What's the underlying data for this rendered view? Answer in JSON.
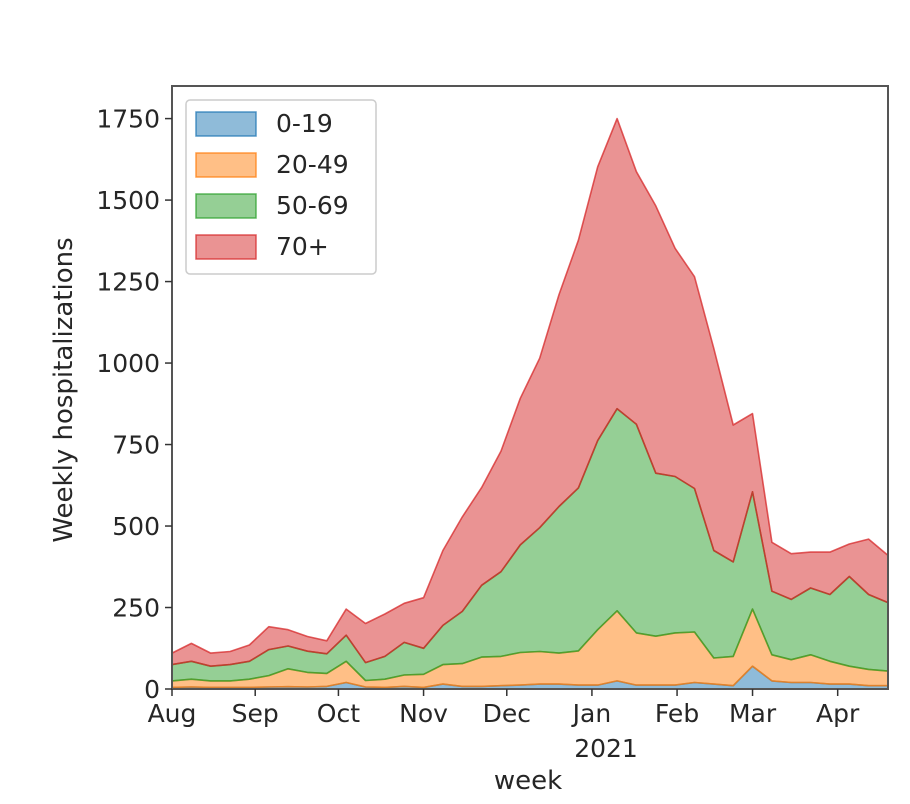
{
  "chart_data": {
    "type": "area",
    "stacked": true,
    "xlabel": "week",
    "ylabel": "Weekly hospitalizations",
    "year_label": "2021",
    "ylim": [
      0,
      1850
    ],
    "yticks": [
      0,
      250,
      500,
      750,
      1000,
      1250,
      1500,
      1750
    ],
    "x_start_week": 0,
    "x_end_week": 37,
    "month_ticks": [
      {
        "label": "Aug",
        "week": 0
      },
      {
        "label": "Sep",
        "week": 4.3
      },
      {
        "label": "Oct",
        "week": 8.6
      },
      {
        "label": "Nov",
        "week": 13
      },
      {
        "label": "Dec",
        "week": 17.3
      },
      {
        "label": "Jan",
        "week": 21.7
      },
      {
        "label": "Feb",
        "week": 26.1
      },
      {
        "label": "Mar",
        "week": 30
      },
      {
        "label": "Apr",
        "week": 34.4
      }
    ],
    "weeks": [
      0,
      1,
      2,
      3,
      4,
      5,
      6,
      7,
      8,
      9,
      10,
      11,
      12,
      13,
      14,
      15,
      16,
      17,
      18,
      19,
      20,
      21,
      22,
      23,
      24,
      25,
      26,
      27,
      28,
      29,
      30,
      31,
      32,
      33,
      34,
      35,
      36,
      37
    ],
    "series": [
      {
        "name": "0-19",
        "color": "#1f77b4",
        "values": [
          5,
          6,
          5,
          5,
          5,
          6,
          7,
          6,
          8,
          20,
          6,
          5,
          8,
          5,
          15,
          8,
          8,
          10,
          12,
          15,
          15,
          12,
          12,
          25,
          12,
          12,
          12,
          20,
          15,
          10,
          70,
          25,
          20,
          20,
          15,
          15,
          10,
          10
        ]
      },
      {
        "name": "20-49",
        "color": "#ff7f0e",
        "values": [
          20,
          24,
          20,
          20,
          25,
          35,
          55,
          45,
          40,
          65,
          20,
          25,
          35,
          40,
          60,
          70,
          90,
          90,
          100,
          100,
          95,
          105,
          170,
          215,
          160,
          150,
          160,
          155,
          80,
          90,
          175,
          80,
          70,
          85,
          70,
          55,
          50,
          45
        ]
      },
      {
        "name": "50-69",
        "color": "#2ca02c",
        "values": [
          50,
          55,
          45,
          50,
          55,
          80,
          70,
          65,
          60,
          80,
          55,
          70,
          100,
          80,
          120,
          160,
          220,
          260,
          330,
          380,
          450,
          500,
          580,
          620,
          640,
          500,
          480,
          440,
          330,
          290,
          360,
          195,
          185,
          205,
          205,
          275,
          230,
          210
        ]
      },
      {
        "name": "70+",
        "color": "#d62728",
        "values": [
          35,
          55,
          40,
          40,
          50,
          70,
          50,
          45,
          40,
          80,
          120,
          130,
          120,
          155,
          230,
          290,
          300,
          370,
          450,
          520,
          650,
          760,
          840,
          890,
          775,
          820,
          700,
          650,
          620,
          420,
          240,
          150,
          140,
          110,
          130,
          100,
          170,
          145
        ]
      }
    ]
  }
}
